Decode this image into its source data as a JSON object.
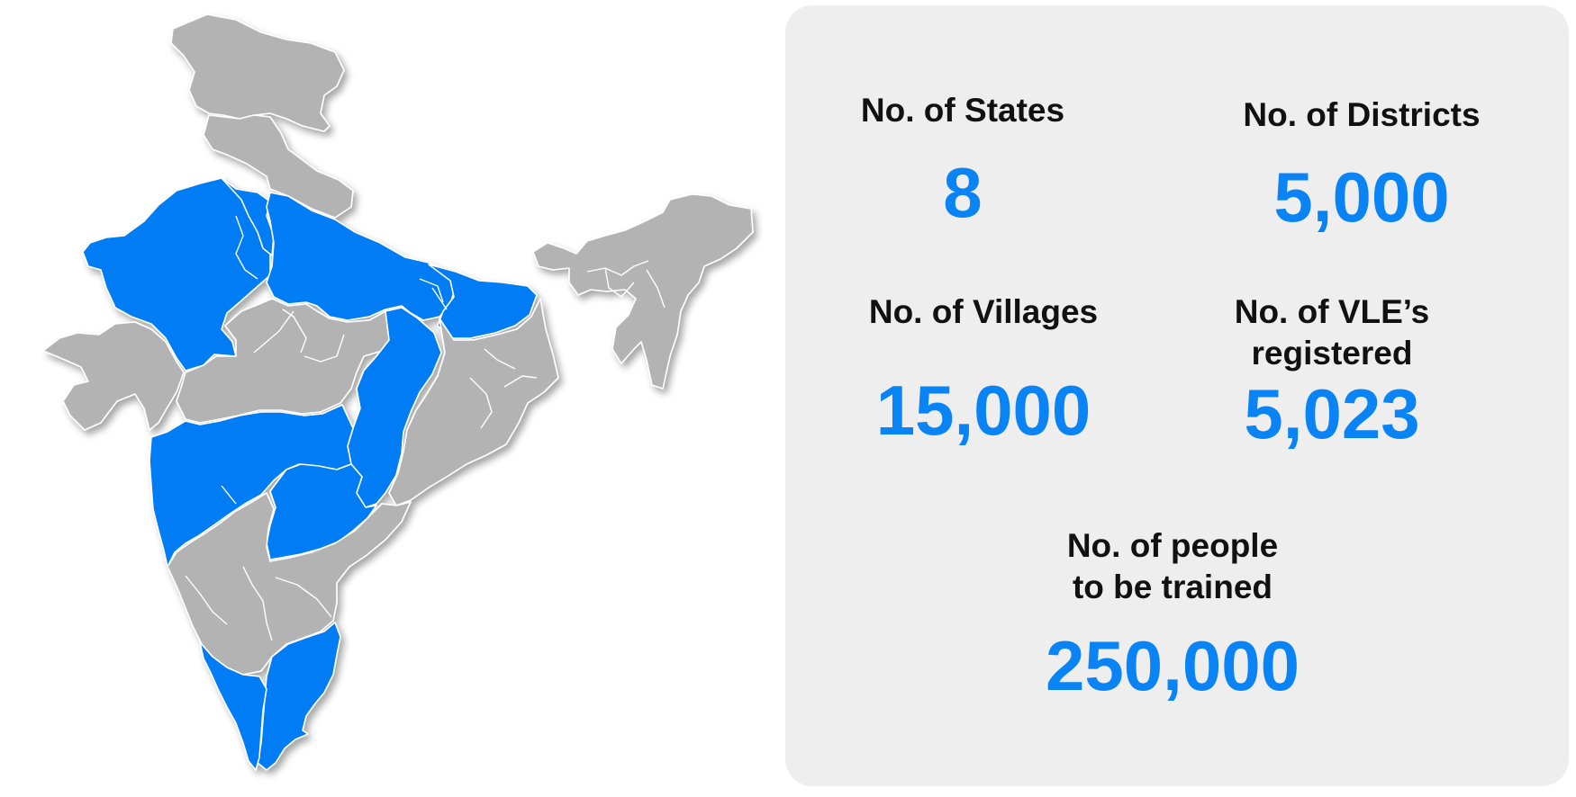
{
  "map": {
    "highlight_color": "#007bf5",
    "base_color": "#b3b3b3"
  },
  "stats": {
    "states": {
      "label": "No. of States",
      "value": "8"
    },
    "districts": {
      "label": "No. of Districts",
      "value": "5,000"
    },
    "villages": {
      "label": "No. of Villages",
      "value": "15,000"
    },
    "vles": {
      "label_line1": "No. of VLE’s",
      "label_line2": "registered",
      "value": "5,023"
    },
    "people": {
      "label_line1": "No. of people",
      "label_line2": "to be trained",
      "value": "250,000"
    },
    "value_color": "#0a84f5",
    "panel_color": "#eeeeee"
  }
}
